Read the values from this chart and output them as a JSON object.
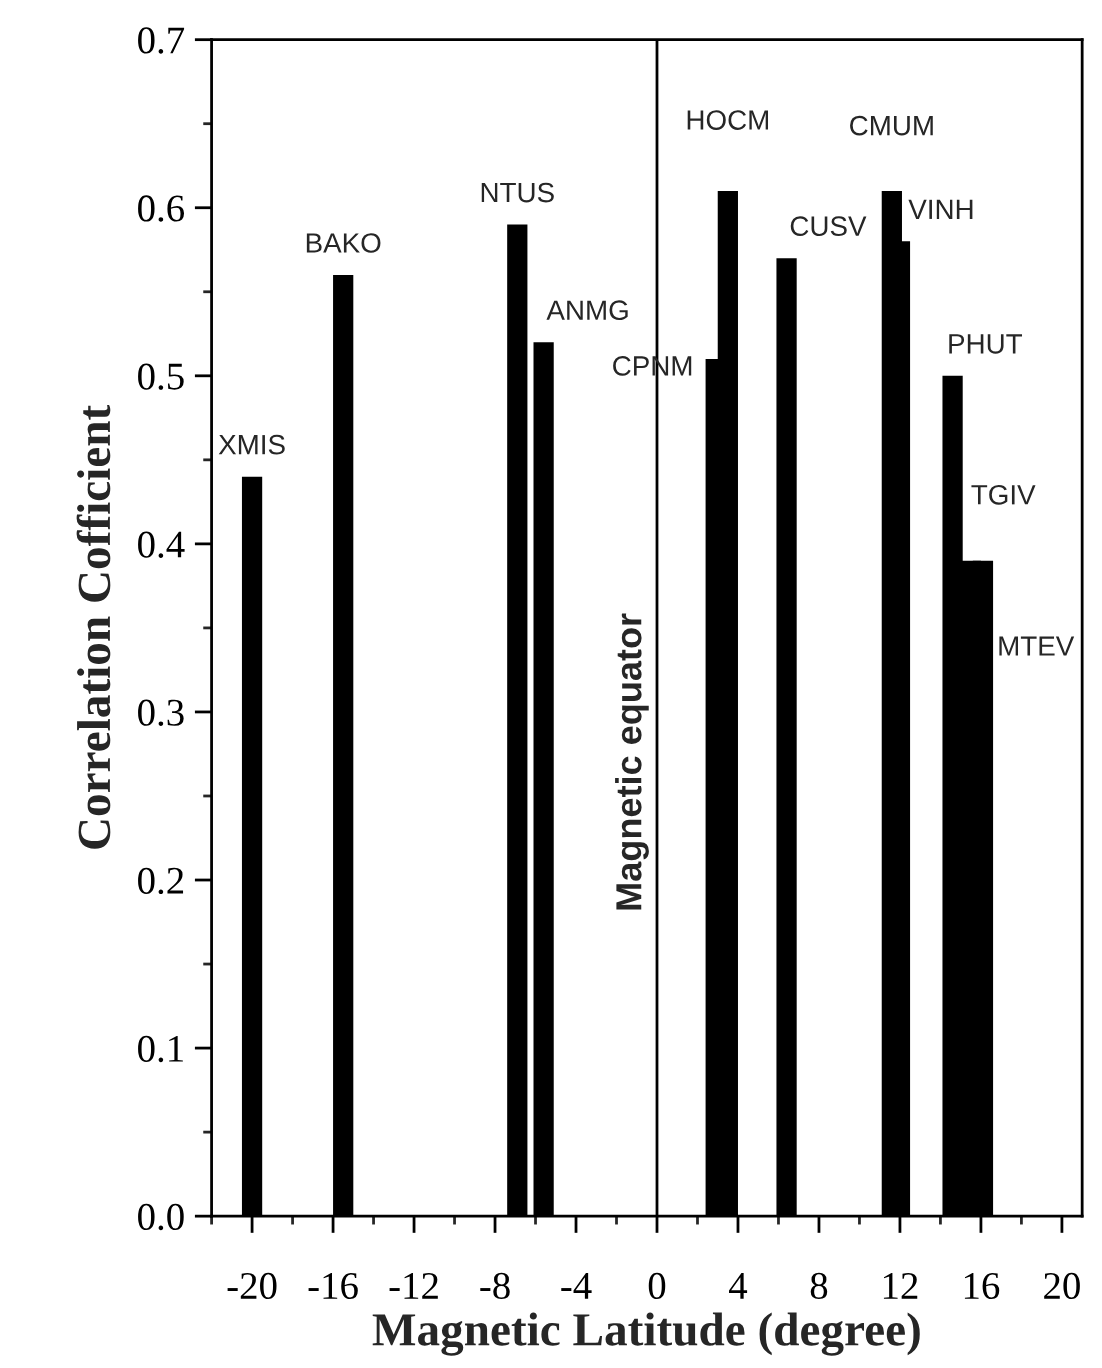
{
  "chart_data": {
    "type": "bar",
    "x": [
      -20.0,
      -15.5,
      -6.9,
      -5.6,
      2.9,
      3.5,
      6.4,
      11.6,
      12.0,
      14.6,
      15.5,
      16.1
    ],
    "values": [
      0.44,
      0.56,
      0.59,
      0.52,
      0.51,
      0.61,
      0.57,
      0.61,
      0.58,
      0.5,
      0.39,
      0.39
    ],
    "color": "#000000",
    "xlabel": "Magnetic Latitude (degree)",
    "ylabel": "Correlation Cofficient",
    "xlim": [
      -22,
      21
    ],
    "xticks": [
      -20,
      -16,
      -12,
      -8,
      -4,
      0,
      4,
      8,
      12,
      16,
      20
    ],
    "ylim": [
      0,
      0.7
    ],
    "yticks": [
      {
        "value": 0,
        "label": "0.0"
      },
      0.1,
      0.2,
      0.3,
      0.4,
      0.5,
      0.6,
      0.7
    ],
    "ref_lines": [
      {
        "axis": "x",
        "value": 0,
        "label": "Magnetic equator",
        "color": "#000000"
      }
    ],
    "annotations": [
      {
        "text": "XMIS",
        "x": -20.0,
        "y": 0.44
      },
      {
        "text": "BAKO",
        "x": -15.5,
        "y": 0.56
      },
      {
        "text": "NTUS",
        "x": -6.9,
        "y": 0.59
      },
      {
        "text": "ANMG",
        "x": -5.6,
        "y": 0.52
      },
      {
        "text": "CPNM",
        "x": 2.9,
        "y": 0.51
      },
      {
        "text": "HOCM",
        "x": 3.5,
        "y": 0.61
      },
      {
        "text": "CUSV",
        "x": 6.4,
        "y": 0.57
      },
      {
        "text": "CMUM",
        "x": 11.6,
        "y": 0.61
      },
      {
        "text": "VINH",
        "x": 12.0,
        "y": 0.58
      },
      {
        "text": "PHUT",
        "x": 14.6,
        "y": 0.5
      },
      {
        "text": "TGIV",
        "x": 15.5,
        "y": 0.43
      },
      {
        "text": "MTEV",
        "x": 16.8,
        "y": 0.34
      }
    ]
  }
}
